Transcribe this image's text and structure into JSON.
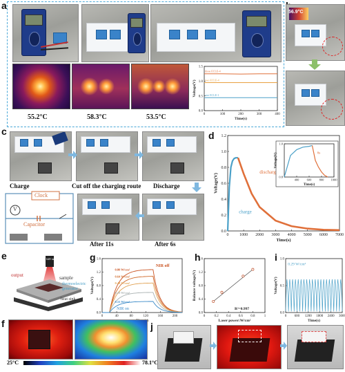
{
  "panels": {
    "a": "a",
    "b": "b",
    "c": "c",
    "d": "d",
    "e": "e",
    "f": "f",
    "g": "g",
    "h": "h",
    "i": "i",
    "j": "j"
  },
  "panel_a": {
    "temps": [
      "55.2°C",
      "58.3°C",
      "53.5°C"
    ]
  },
  "panel_b": {
    "thermal_readout": "56.9°C"
  },
  "panel_c": {
    "steps": [
      "Charge",
      "Cut off the charging route",
      "Discharge",
      "After 11s",
      "After 6s"
    ],
    "circuit": {
      "clock": "Clock",
      "voltmeter": "V",
      "capacitor": "Capacitor"
    }
  },
  "panel_e": {
    "laser_label": "NIR laser",
    "labels": [
      "output",
      "sample",
      "thermoelectric generator",
      "heat sink"
    ]
  },
  "panel_f": {
    "scale_min": "25°C",
    "scale_max": "78.1°C"
  },
  "chart_data": [
    {
      "id": "a-inset",
      "type": "line",
      "xlabel": "Time(s)",
      "ylabel": "Voltage(V)",
      "xlim": [
        0,
        400
      ],
      "ylim": [
        0,
        1.5
      ],
      "xticks": [
        0,
        100,
        200,
        300,
        400
      ],
      "yticks": [
        0.0,
        0.5,
        1.0,
        1.5
      ],
      "series": [
        {
          "name": "three ECLE-4",
          "color": "#e0703a",
          "values": [
            1.25,
            1.25,
            1.24,
            1.25,
            1.25
          ]
        },
        {
          "name": "two ECLE-4",
          "color": "#e8a040",
          "values": [
            0.95,
            0.95,
            0.95,
            0.95,
            0.95
          ]
        },
        {
          "name": "one ECLE-1",
          "color": "#4aa0c8",
          "values": [
            0.44,
            0.44,
            0.44,
            0.44,
            0.44
          ]
        }
      ],
      "x": [
        0,
        100,
        200,
        300,
        400
      ]
    },
    {
      "id": "d",
      "type": "line",
      "xlabel": "Time(s)",
      "ylabel": "Voltage(V)",
      "xlim": [
        0,
        7000
      ],
      "ylim": [
        0,
        1.2
      ],
      "xticks": [
        0,
        1000,
        2000,
        3000,
        4000,
        5000,
        6000,
        7000
      ],
      "yticks": [
        0.0,
        0.2,
        0.4,
        0.6,
        0.8,
        1.0,
        1.2
      ],
      "annotations": [
        "discharge",
        "charge"
      ],
      "series": [
        {
          "name": "charge",
          "color": "#4aa0c8",
          "x": [
            0,
            100,
            200,
            300,
            400,
            500,
            650
          ],
          "values": [
            0,
            0.55,
            0.8,
            0.88,
            0.91,
            0.92,
            0.92
          ]
        },
        {
          "name": "discharge",
          "color": "#e0703a",
          "x": [
            650,
            1000,
            1500,
            2000,
            3000,
            4000,
            5000,
            6000,
            7000
          ],
          "values": [
            0.92,
            0.72,
            0.47,
            0.3,
            0.13,
            0.06,
            0.03,
            0.015,
            0.01
          ]
        }
      ],
      "inset": {
        "xlabel": "Time(s)",
        "ylabel": "Voltage(V)",
        "xlim": [
          200,
          1000
        ],
        "ylim": [
          0.8,
          1.0
        ],
        "xticks": [
          400,
          600,
          800,
          1000
        ],
        "yticks": [
          0.8,
          1.0
        ],
        "annotations": [
          "6s"
        ]
      }
    },
    {
      "id": "g",
      "type": "line",
      "xlabel": "Time(s)",
      "ylabel": "Voltage(V)",
      "xlim": [
        0,
        220
      ],
      "ylim": [
        0,
        1.6
      ],
      "xticks": [
        0,
        40,
        80,
        120,
        160,
        200
      ],
      "yticks": [
        0.0,
        0.4,
        0.8,
        1.2,
        1.6
      ],
      "annotations": [
        "NIR off",
        "NIR on"
      ],
      "series": [
        {
          "name": "0.80 W/cm²",
          "color": "#c9501e",
          "peak": 1.28
        },
        {
          "name": "0.64 W/cm²",
          "color": "#d06a2a",
          "peak": 1.08
        },
        {
          "name": "0.48 W/cm²",
          "color": "#e0a050",
          "peak": 0.88
        },
        {
          "name": "0.29 W/cm²",
          "color": "#a8b0b0",
          "peak": 0.6
        },
        {
          "name": "0.15 W/cm²",
          "color": "#3a8ac8",
          "peak": 0.33
        }
      ]
    },
    {
      "id": "h",
      "type": "scatter",
      "xlabel": "Laser power:W/cm²",
      "ylabel": "Balance voltage(V)",
      "xlim": [
        0.0,
        1.0
      ],
      "ylim": [
        0,
        1.6
      ],
      "xticks": [
        0.0,
        0.2,
        0.4,
        0.6,
        0.8,
        1.0
      ],
      "yticks": [
        0.0,
        0.4,
        0.8,
        1.2,
        1.6
      ],
      "annotation": "R²=0.997",
      "x": [
        0.15,
        0.29,
        0.64,
        0.8
      ],
      "values": [
        0.33,
        0.6,
        1.08,
        1.28
      ]
    },
    {
      "id": "i",
      "type": "line",
      "xlabel": "Time(s)",
      "ylabel": "Voltage(V)",
      "xlim": [
        0,
        3000
      ],
      "ylim": [
        0,
        1.0
      ],
      "xticks": [
        0,
        600,
        1200,
        1800,
        2400,
        3000
      ],
      "yticks": [
        0.0,
        0.5,
        1.0
      ],
      "series": [
        {
          "name": "0.29 W/cm²",
          "color": "#4aa0c8",
          "cycles": 20,
          "peak": 0.62
        }
      ]
    }
  ]
}
